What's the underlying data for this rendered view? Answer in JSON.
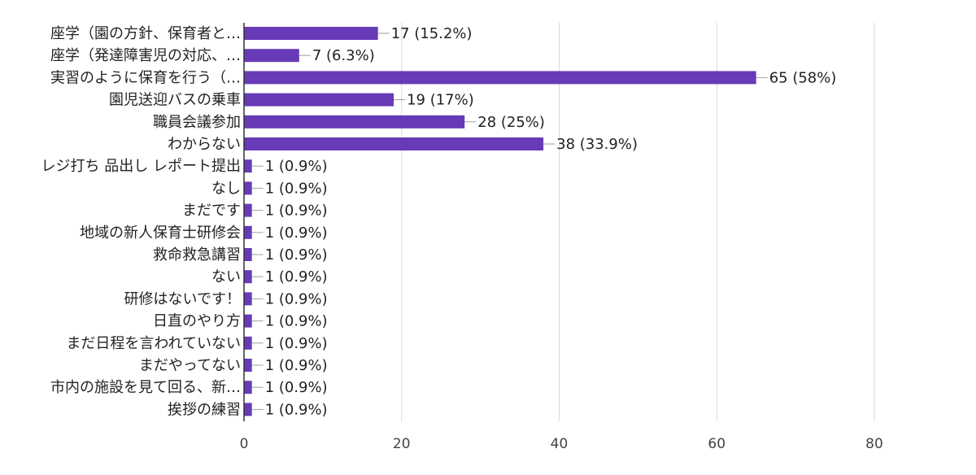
{
  "chart_data": {
    "type": "bar",
    "orientation": "horizontal",
    "title": "",
    "xlabel": "",
    "ylabel": "",
    "xlim": [
      0,
      80
    ],
    "x_ticks": [
      0,
      20,
      40,
      60,
      80
    ],
    "x_tick_labels": [
      "0",
      "20",
      "40",
      "60",
      "80"
    ],
    "grid": true,
    "bar_color": "#673ab7",
    "categories": [
      "座学（園の方針、保育者と…",
      "座学（発達障害児の対応、…",
      "実習のように保育を行う（…",
      "園児送迎バスの乗車",
      "職員会議参加",
      "わからない",
      "レジ打ち 品出し レポート提出",
      "なし",
      "まだです",
      "地域の新人保育士研修会",
      "救命救急講習",
      "ない",
      "研修はないです！",
      "日直のやり方",
      "まだ日程を言われていない",
      "まだやってない",
      "市内の施設を見て回る、新…",
      "挨拶の練習"
    ],
    "values": [
      17,
      7,
      65,
      19,
      28,
      38,
      1,
      1,
      1,
      1,
      1,
      1,
      1,
      1,
      1,
      1,
      1,
      1
    ],
    "value_labels": [
      "17 (15.2%)",
      "7 (6.3%)",
      "65 (58%)",
      "19 (17%)",
      "28 (25%)",
      "38 (33.9%)",
      "1 (0.9%)",
      "1 (0.9%)",
      "1 (0.9%)",
      "1 (0.9%)",
      "1 (0.9%)",
      "1 (0.9%)",
      "1 (0.9%)",
      "1 (0.9%)",
      "1 (0.9%)",
      "1 (0.9%)",
      "1 (0.9%)",
      "1 (0.9%)"
    ]
  }
}
